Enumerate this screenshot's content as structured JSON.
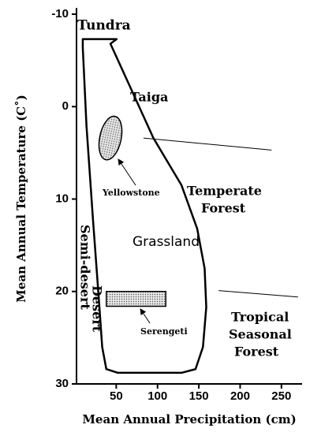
{
  "chart_data": {
    "type": "biome",
    "xlabel": "Mean Annual Precipitation (cm)",
    "ylabel": "Mean Annual Temperature (C˚)",
    "xlim": [
      0,
      275
    ],
    "ylim": [
      -10,
      30
    ],
    "y_inverted": true,
    "xticks": [
      50,
      100,
      150,
      200,
      250
    ],
    "yticks": [
      -10,
      0,
      10,
      20,
      30
    ],
    "outline": {
      "x": [
        9.5,
        50.5,
        43,
        67,
        95,
        129,
        148,
        157,
        159,
        155,
        146,
        129,
        52,
        38,
        33,
        29,
        22,
        14,
        9.5
      ],
      "y": [
        -7.3,
        -7.3,
        -6.8,
        -2.1,
        3.4,
        8.5,
        13.2,
        17.5,
        21.7,
        26,
        28.4,
        28.8,
        28.8,
        28.4,
        26,
        20.9,
        12.4,
        2.1,
        -6.4
      ]
    },
    "regions": [
      {
        "name": "Yellowstone",
        "cx": 43,
        "cy": 3.4,
        "rx": 13,
        "ry": 2.4
      },
      {
        "name": "Serengeti",
        "x0": 38,
        "x1": 110,
        "y0": 20,
        "y1": 21.6
      }
    ],
    "boundaries": [
      {
        "x": [
          83,
          238
        ],
        "y": [
          3.4,
          4.7
        ]
      },
      {
        "x": [
          174,
          270
        ],
        "y": [
          19.9,
          20.6
        ]
      }
    ],
    "labels": [
      [
        "Tundra"
      ],
      [
        "Taiga"
      ],
      [
        "Temperate",
        "Forest"
      ],
      [
        "Grassland"
      ],
      [
        "Semi-desert"
      ],
      [
        "Desert"
      ],
      [
        "Tropical",
        "Seasonal",
        "Forest"
      ]
    ]
  }
}
